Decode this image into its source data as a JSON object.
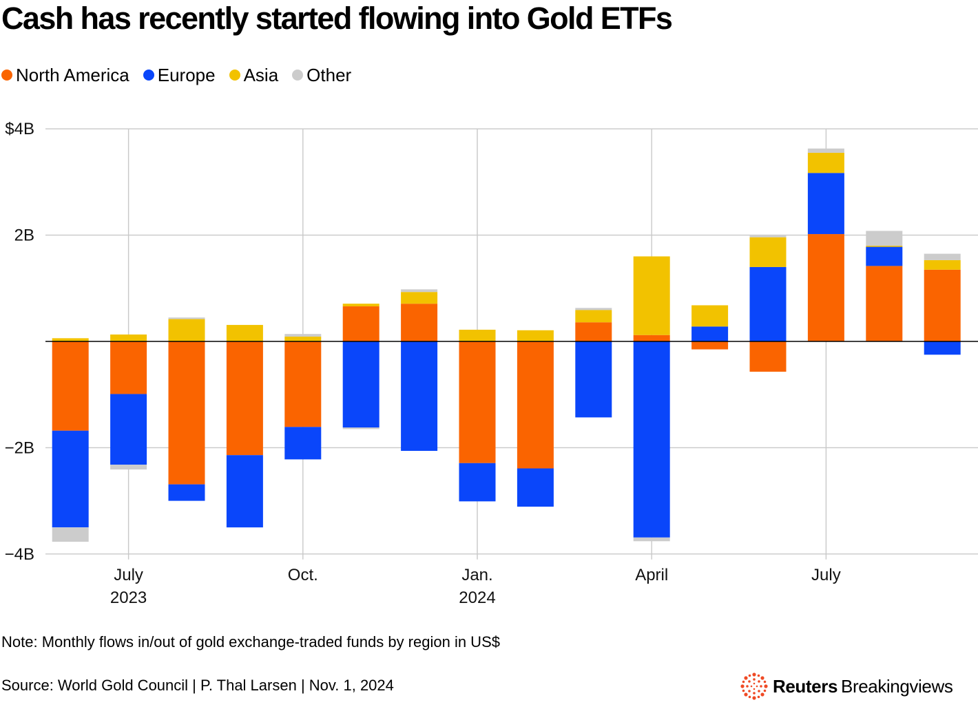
{
  "title": "Cash has recently started flowing into Gold ETFs",
  "note": "Note: Monthly flows in/out of gold exchange-traded funds by region in US$",
  "source": "Source: World Gold Council | P. Thal Larsen | Nov. 1, 2024",
  "brand": {
    "name_bold": "Reuters",
    "name_regular": "Breakingviews"
  },
  "colors": {
    "North America": "#fa6400",
    "Europe": "#0a46fa",
    "Asia": "#f2c200",
    "Other": "#cccccc"
  },
  "chart_data": {
    "type": "bar",
    "stacked": true,
    "title": "Cash has recently started flowing into Gold ETFs",
    "xlabel": "",
    "ylabel": "",
    "ylim": [
      -4,
      4
    ],
    "y_unit": "US$ billion",
    "y_ticks": [
      4,
      2,
      -2,
      -4
    ],
    "y_tick_labels": [
      "$4B",
      "2B",
      "−2B",
      "−4B"
    ],
    "grid": true,
    "legend_position": "top-left",
    "categories": [
      "Jun 2023",
      "Jul 2023",
      "Aug 2023",
      "Sep 2023",
      "Oct 2023",
      "Nov 2023",
      "Dec 2023",
      "Jan 2024",
      "Feb 2024",
      "Mar 2024",
      "Apr 2024",
      "May 2024",
      "Jun 2024",
      "Jul 2024",
      "Aug 2024",
      "Sep 2024"
    ],
    "x_tick_labels": [
      {
        "category": "Jul 2023",
        "lines": [
          "July",
          "2023"
        ]
      },
      {
        "category": "Oct 2023",
        "lines": [
          "Oct."
        ]
      },
      {
        "category": "Jan 2024",
        "lines": [
          "Jan.",
          "2024"
        ]
      },
      {
        "category": "Apr 2024",
        "lines": [
          "April"
        ]
      },
      {
        "category": "Jul 2024",
        "lines": [
          "July"
        ]
      }
    ],
    "series": [
      {
        "name": "North America",
        "values": [
          -1.68,
          -0.99,
          -2.69,
          -2.14,
          -1.61,
          0.66,
          0.71,
          -2.29,
          -2.39,
          0.36,
          0.12,
          -0.15,
          -0.57,
          2.02,
          1.42,
          1.35
        ]
      },
      {
        "name": "Europe",
        "values": [
          -1.82,
          -1.33,
          -0.31,
          -1.36,
          -0.61,
          -1.62,
          -2.06,
          -0.72,
          -0.72,
          -1.43,
          -3.69,
          0.28,
          1.4,
          1.15,
          0.36,
          -0.25
        ]
      },
      {
        "name": "Asia",
        "values": [
          0.06,
          0.13,
          0.42,
          0.31,
          0.09,
          0.05,
          0.22,
          0.22,
          0.21,
          0.23,
          1.48,
          0.4,
          0.56,
          0.38,
          0.02,
          0.18
        ]
      },
      {
        "name": "Other",
        "values": [
          -0.27,
          -0.09,
          0.03,
          0.0,
          0.05,
          -0.03,
          0.05,
          0.0,
          0.0,
          0.04,
          -0.07,
          0.0,
          0.03,
          0.08,
          0.28,
          0.12
        ]
      }
    ]
  }
}
